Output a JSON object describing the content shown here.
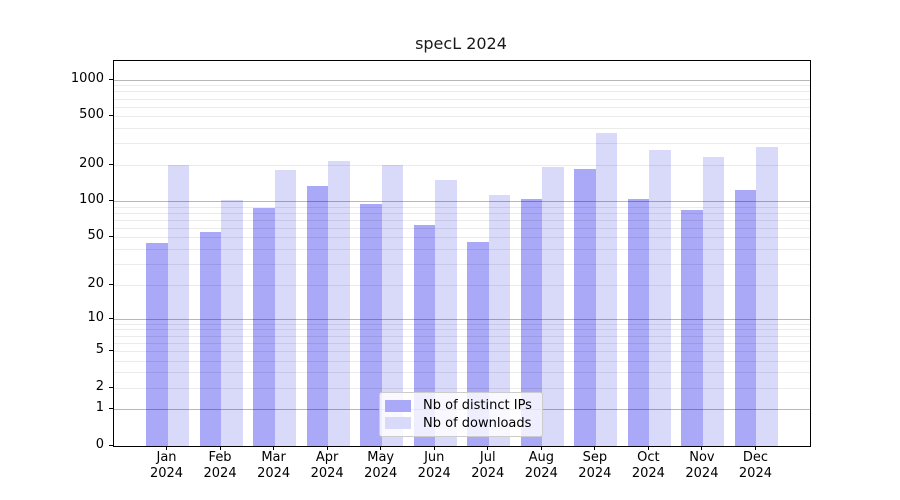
{
  "title": "specL 2024",
  "chart_data": {
    "type": "bar",
    "title": "specL 2024",
    "categories": [
      "Jan 2024",
      "Feb 2024",
      "Mar 2024",
      "Apr 2024",
      "May 2024",
      "Jun 2024",
      "Jul 2024",
      "Aug 2024",
      "Sep 2024",
      "Oct 2024",
      "Nov 2024",
      "Dec 2024"
    ],
    "series": [
      {
        "name": "Nb of distinct IPs",
        "color": "#a9a9f7",
        "values": [
          45,
          56,
          88,
          134,
          95,
          64,
          46,
          105,
          186,
          105,
          85,
          123
        ]
      },
      {
        "name": "Nb of downloads",
        "color": "#d9d9fa",
        "values": [
          200,
          102,
          180,
          213,
          199,
          150,
          112,
          190,
          365,
          263,
          230,
          280
        ]
      }
    ],
    "yscale": "log(1+x)",
    "ylim": [
      0,
      1421
    ],
    "ytick_labels": [
      0,
      1,
      2,
      5,
      10,
      20,
      50,
      100,
      200,
      500,
      1000
    ],
    "grid": "horizontal, major at powers of 10, faint minors at 2-9 multiples",
    "legend_position": "lower center",
    "axis_color": "#000000",
    "major_grid_color": "rgba(0,0,0,0.28)",
    "minor_grid_color": "rgba(0,0,0,0.08)"
  }
}
